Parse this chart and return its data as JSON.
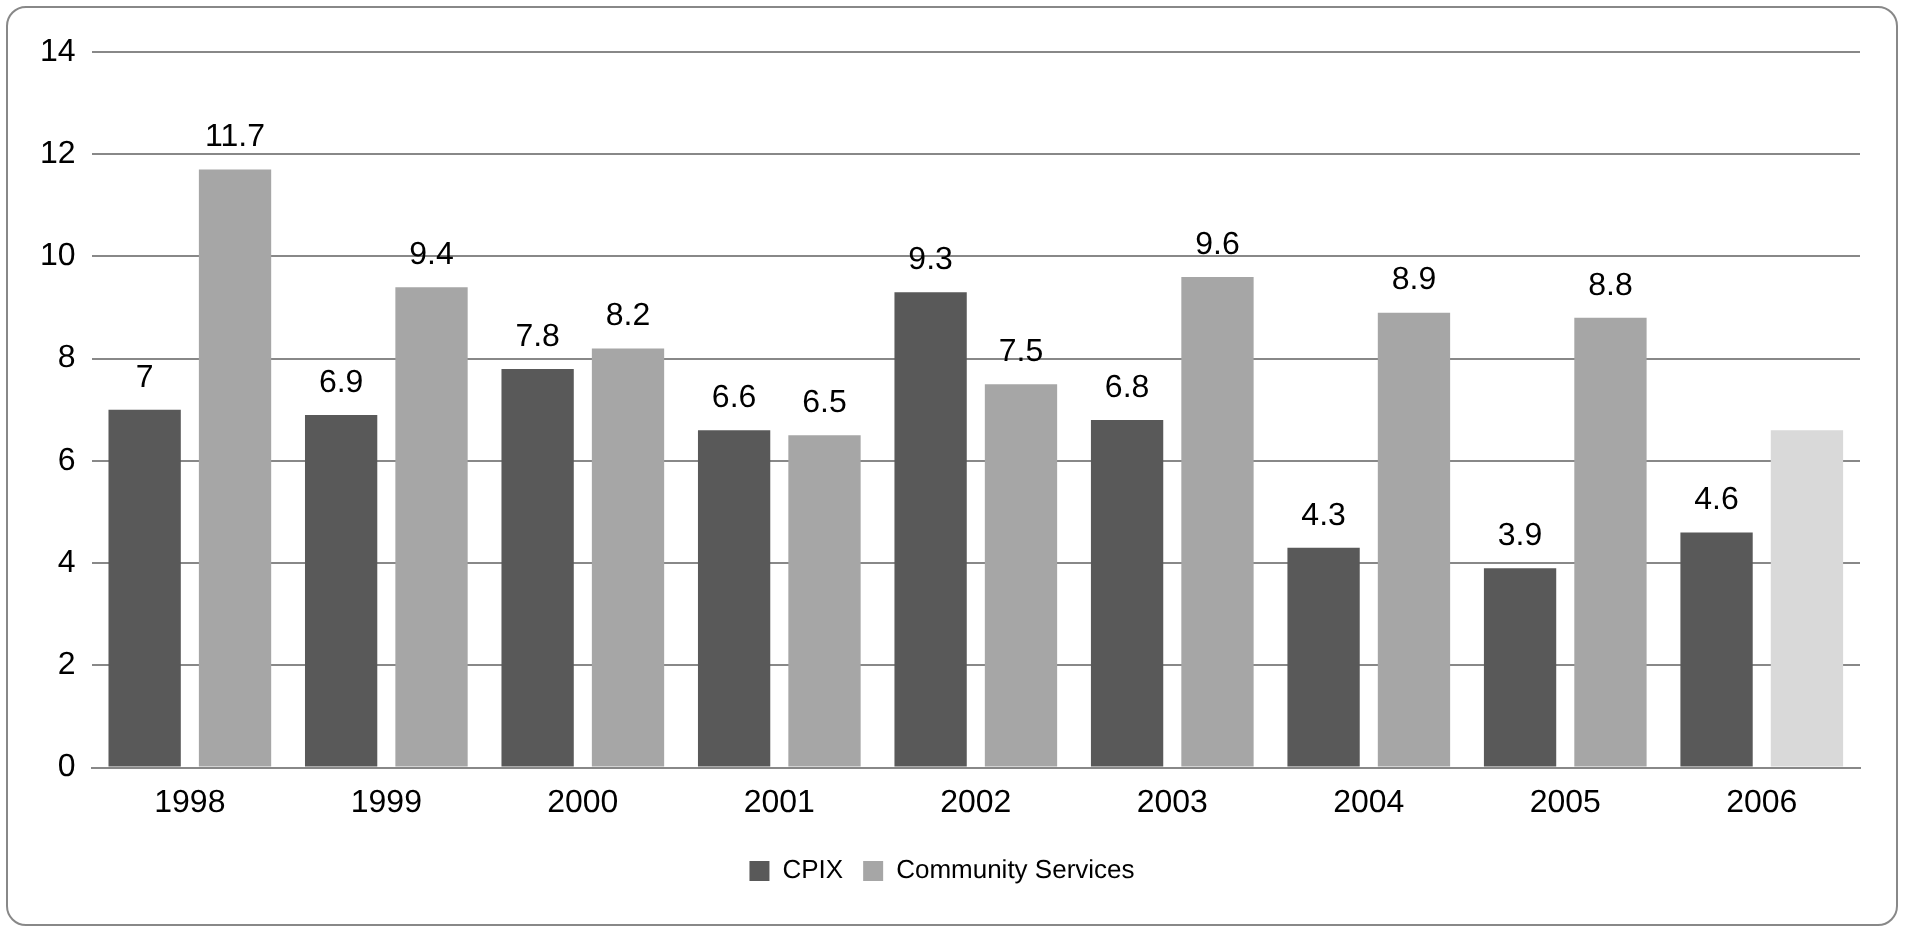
{
  "chart_data": {
    "type": "bar",
    "categories": [
      "1998",
      "1999",
      "2000",
      "2001",
      "2002",
      "2003",
      "2004",
      "2005",
      "2006"
    ],
    "series": [
      {
        "name": "CPIX",
        "color": "#595959",
        "values": [
          7,
          6.9,
          7.8,
          6.6,
          9.3,
          6.8,
          4.3,
          3.9,
          4.6
        ],
        "value_labels": [
          "7",
          "6.9",
          "7.8",
          "6.6",
          "9.3",
          "6.8",
          "4.3",
          "3.9",
          "4.6"
        ]
      },
      {
        "name": "Community Services",
        "color": "#a6a6a6",
        "colors": [
          "#a6a6a6",
          "#a6a6a6",
          "#a6a6a6",
          "#a6a6a6",
          "#a6a6a6",
          "#a6a6a6",
          "#a6a6a6",
          "#a6a6a6",
          "#d9d9d9"
        ],
        "values": [
          11.7,
          9.4,
          8.2,
          6.5,
          7.5,
          9.6,
          8.9,
          8.8,
          6.6
        ],
        "value_labels": [
          "11.7",
          "9.4",
          "8.2",
          "6.5",
          "7.5",
          "9.6",
          "8.9",
          "8.8",
          null
        ]
      }
    ],
    "ylim": [
      0,
      14
    ],
    "yticks": [
      0,
      2,
      4,
      6,
      8,
      10,
      12,
      14
    ],
    "grid": "y",
    "legend": "bottom"
  }
}
